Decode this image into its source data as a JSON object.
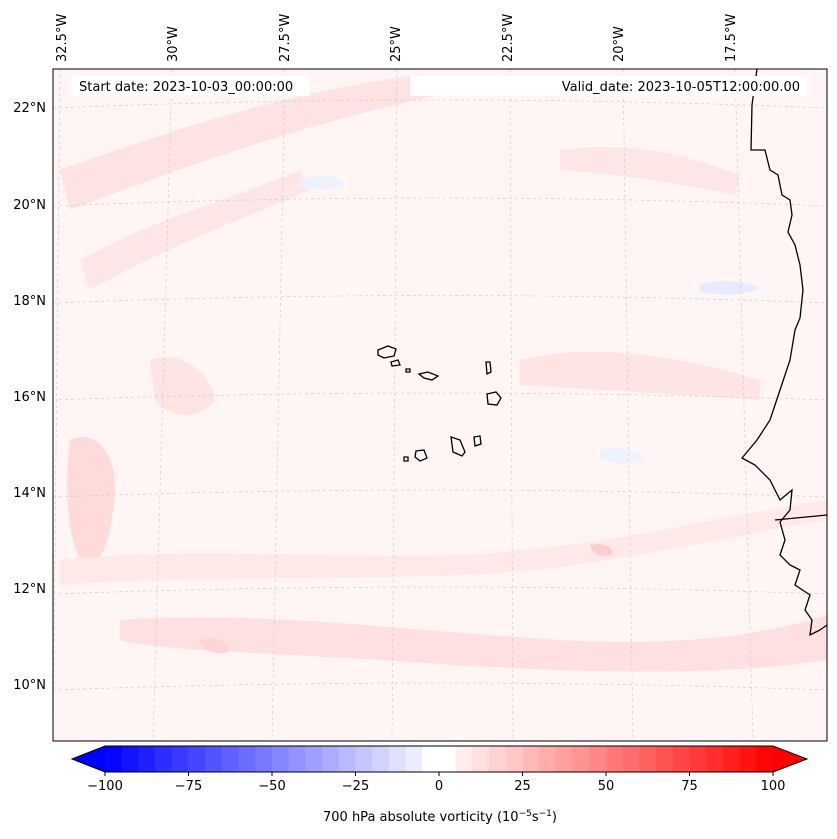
{
  "map": {
    "start_date_label": "Start date: 2023-10-03_00:00:00",
    "valid_date_label": "Valid_date: 2023-10-05T12:00:00.00",
    "lon_labels": [
      "32.5°W",
      "30°W",
      "27.5°W",
      "25°W",
      "22.5°W",
      "20°W",
      "17.5°W"
    ],
    "lat_labels": [
      "22°N",
      "20°N",
      "18°N",
      "16°N",
      "14°N",
      "12°N",
      "10°N"
    ],
    "field_colors": {
      "background": "#fff5f5",
      "light_positive": "#ffe4e4",
      "mid_positive": "#ffd6d6",
      "light_negative": "#eef2ff"
    }
  },
  "colorbar": {
    "label": "700 hPa absolute vorticity (10",
    "label_exp1": "−5",
    "label_mid": "s",
    "label_exp2": "−1",
    "label_end": ")",
    "tick_labels": [
      "−100",
      "−75",
      "−50",
      "−25",
      "0",
      "25",
      "50",
      "75",
      "100"
    ],
    "min": -100,
    "max": 100,
    "step": 5,
    "neg_color": "#0000ff",
    "pos_color": "#ff0000"
  }
}
